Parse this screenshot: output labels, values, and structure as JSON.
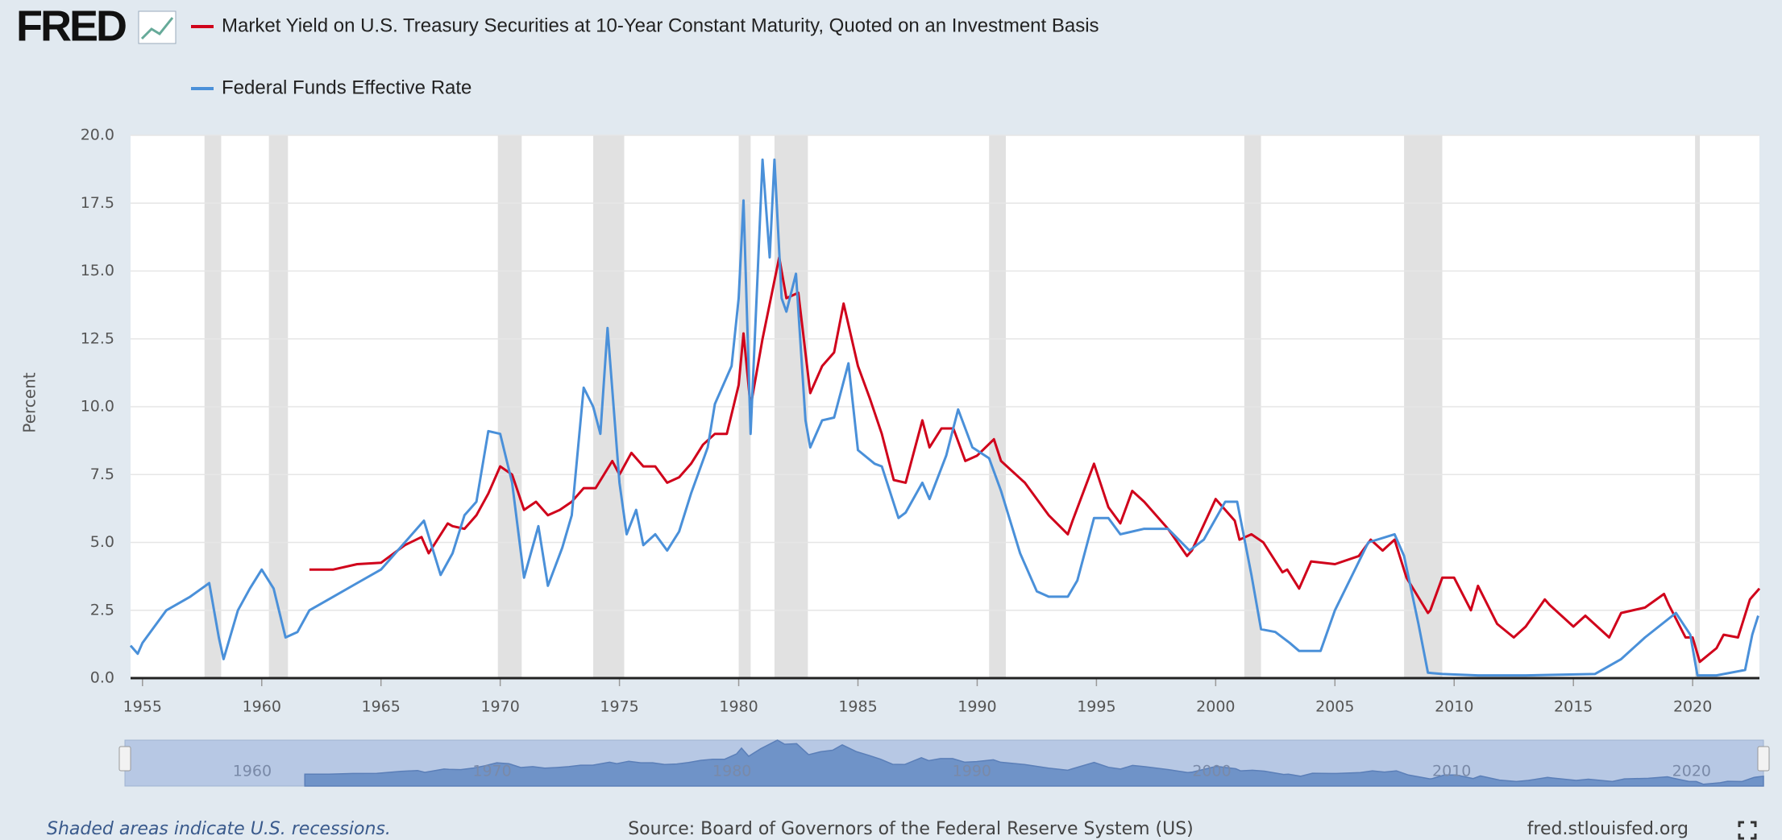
{
  "logo": "FRED",
  "footer": {
    "note": "Shaded areas indicate U.S. recessions.",
    "source": "Source: Board of Governors of the Federal Reserve System (US)",
    "site": "fred.stlouisfed.org"
  },
  "chart_data": {
    "type": "line",
    "ylabel": "Percent",
    "xlim": [
      1954.5,
      2022.8
    ],
    "xticks": [
      1955,
      1960,
      1965,
      1970,
      1975,
      1980,
      1985,
      1990,
      1995,
      2000,
      2005,
      2010,
      2015,
      2020
    ],
    "ylim": [
      0,
      20
    ],
    "yticks": [
      {
        "value": 0,
        "label": "0.0"
      },
      2.5,
      {
        "value": 5,
        "label": "5.0"
      },
      7.5,
      {
        "value": 10,
        "label": "10.0"
      },
      12.5,
      {
        "value": 15,
        "label": "15.0"
      },
      17.5,
      {
        "value": 20,
        "label": "20.0"
      }
    ],
    "grid": true,
    "recession_color": "#e1e1e1",
    "recessions": [
      [
        1957.6,
        1958.3
      ],
      [
        1960.3,
        1961.1
      ],
      [
        1969.9,
        1970.9
      ],
      [
        1973.9,
        1975.2
      ],
      [
        1980.0,
        1980.5
      ],
      [
        1981.5,
        1982.9
      ],
      [
        1990.5,
        1991.2
      ],
      [
        2001.2,
        2001.9
      ],
      [
        2007.9,
        2009.5
      ],
      [
        2020.1,
        2020.3
      ]
    ],
    "navigator_ticks": [
      1960,
      1970,
      1980,
      1990,
      2000,
      2010,
      2020
    ],
    "series": [
      {
        "name": "Market Yield on U.S. Treasury Securities at 10-Year Constant Maturity, Quoted on an Investment Basis",
        "color": "#d0021b",
        "x": [
          1962,
          1963,
          1964,
          1965,
          1966,
          1966.7,
          1967,
          1967.8,
          1968,
          1968.5,
          1969,
          1969.5,
          1970,
          1970.5,
          1971,
          1971.5,
          1972,
          1972.5,
          1973,
          1973.5,
          1974,
          1974.7,
          1975,
          1975.5,
          1976,
          1976.5,
          1977,
          1977.5,
          1978,
          1978.5,
          1979,
          1979.5,
          1980,
          1980.2,
          1980.5,
          1981,
          1981.7,
          1982,
          1982.5,
          1983,
          1983.5,
          1984,
          1984.4,
          1985,
          1985.5,
          1986,
          1986.5,
          1987,
          1987.7,
          1988,
          1988.5,
          1989,
          1989.5,
          1990,
          1990.7,
          1991,
          1992,
          1993,
          1993.8,
          1994,
          1994.9,
          1995.5,
          1996,
          1996.5,
          1997,
          1998,
          1998.8,
          1999,
          2000,
          2000.8,
          2001,
          2001.5,
          2002,
          2002.8,
          2003,
          2003.5,
          2004,
          2005,
          2006,
          2006.5,
          2007,
          2007.5,
          2008,
          2008.9,
          2009,
          2009.5,
          2010,
          2010.7,
          2011,
          2011.8,
          2012.5,
          2013,
          2013.8,
          2014,
          2015,
          2015.5,
          2016.5,
          2017,
          2018,
          2018.8,
          2019,
          2019.7,
          2020,
          2020.3,
          2021,
          2021.3,
          2021.9,
          2022.4,
          2022.5,
          2022.8
        ],
        "values": [
          4.0,
          4.0,
          4.2,
          4.25,
          4.9,
          5.2,
          4.6,
          5.7,
          5.6,
          5.5,
          6.0,
          6.8,
          7.8,
          7.5,
          6.2,
          6.5,
          6.0,
          6.2,
          6.5,
          7.0,
          7.0,
          8.0,
          7.5,
          8.3,
          7.8,
          7.8,
          7.2,
          7.4,
          7.9,
          8.6,
          9.0,
          9.0,
          10.8,
          12.7,
          10.0,
          12.5,
          15.5,
          14.0,
          14.2,
          10.5,
          11.5,
          12.0,
          13.8,
          11.5,
          10.3,
          9.0,
          7.3,
          7.2,
          9.5,
          8.5,
          9.2,
          9.2,
          8.0,
          8.2,
          8.8,
          8.0,
          7.2,
          6.0,
          5.3,
          5.8,
          7.9,
          6.3,
          5.7,
          6.9,
          6.5,
          5.5,
          4.5,
          4.7,
          6.6,
          5.8,
          5.1,
          5.3,
          5.0,
          3.9,
          4.0,
          3.3,
          4.3,
          4.2,
          4.5,
          5.1,
          4.7,
          5.1,
          3.7,
          2.4,
          2.5,
          3.7,
          3.7,
          2.5,
          3.4,
          2.0,
          1.5,
          1.9,
          2.9,
          2.7,
          1.9,
          2.3,
          1.5,
          2.4,
          2.6,
          3.1,
          2.7,
          1.5,
          1.5,
          0.6,
          1.1,
          1.6,
          1.5,
          2.9,
          3.0,
          3.3
        ]
      },
      {
        "name": "Federal Funds Effective Rate",
        "color": "#4a90d9",
        "x": [
          1954.5,
          1954.8,
          1955,
          1955.5,
          1956,
          1957,
          1957.8,
          1958.2,
          1958.4,
          1959,
          1959.5,
          1960,
          1960.5,
          1961,
          1961.5,
          1962,
          1963,
          1964,
          1965,
          1966,
          1966.8,
          1967.5,
          1968,
          1968.5,
          1969,
          1969.5,
          1970,
          1970.5,
          1971,
          1971.6,
          1972,
          1972.6,
          1973,
          1973.5,
          1973.9,
          1974.2,
          1974.5,
          1975,
          1975.3,
          1975.7,
          1976,
          1976.5,
          1977,
          1977.5,
          1978,
          1978.7,
          1979,
          1979.7,
          1980,
          1980.2,
          1980.5,
          1980.8,
          1981,
          1981.3,
          1981.5,
          1981.8,
          1982,
          1982.4,
          1982.8,
          1983,
          1983.5,
          1984,
          1984.6,
          1985,
          1985.7,
          1986,
          1986.7,
          1987,
          1987.7,
          1988,
          1988.7,
          1989.2,
          1989.8,
          1990.5,
          1991,
          1991.8,
          1992.5,
          1993,
          1993.8,
          1994.2,
          1994.9,
          1995.5,
          1996,
          1997,
          1998,
          1998.9,
          1999.5,
          2000.4,
          2000.9,
          2001.5,
          2001.9,
          2002.5,
          2003.1,
          2003.5,
          2004.4,
          2005,
          2006.4,
          2007.5,
          2007.9,
          2008.5,
          2008.9,
          2009.5,
          2011,
          2013,
          2015.9,
          2017,
          2018,
          2019.3,
          2019.9,
          2020.2,
          2021,
          2022.2,
          2022.5,
          2022.75
        ],
        "values": [
          1.2,
          0.9,
          1.3,
          1.9,
          2.5,
          3.0,
          3.5,
          1.5,
          0.7,
          2.5,
          3.3,
          4.0,
          3.3,
          1.5,
          1.7,
          2.5,
          3.0,
          3.5,
          4.0,
          5.0,
          5.8,
          3.8,
          4.6,
          6.0,
          6.5,
          9.1,
          9.0,
          7.2,
          3.7,
          5.6,
          3.4,
          4.8,
          6.0,
          10.7,
          10.0,
          9.0,
          12.9,
          7.2,
          5.3,
          6.2,
          4.9,
          5.3,
          4.7,
          5.4,
          6.8,
          8.5,
          10.1,
          11.5,
          14.0,
          17.6,
          9.0,
          15.0,
          19.1,
          15.5,
          19.1,
          14.0,
          13.5,
          14.9,
          9.5,
          8.5,
          9.5,
          9.6,
          11.6,
          8.4,
          7.9,
          7.8,
          5.9,
          6.1,
          7.2,
          6.6,
          8.2,
          9.9,
          8.5,
          8.1,
          6.9,
          4.6,
          3.2,
          3.0,
          3.0,
          3.6,
          5.9,
          5.9,
          5.3,
          5.5,
          5.5,
          4.7,
          5.1,
          6.5,
          6.5,
          3.8,
          1.8,
          1.7,
          1.3,
          1.0,
          1.0,
          2.5,
          5.0,
          5.3,
          4.5,
          2.0,
          0.2,
          0.15,
          0.1,
          0.1,
          0.15,
          0.7,
          1.5,
          2.4,
          1.6,
          0.1,
          0.1,
          0.3,
          1.6,
          2.3
        ]
      }
    ]
  }
}
